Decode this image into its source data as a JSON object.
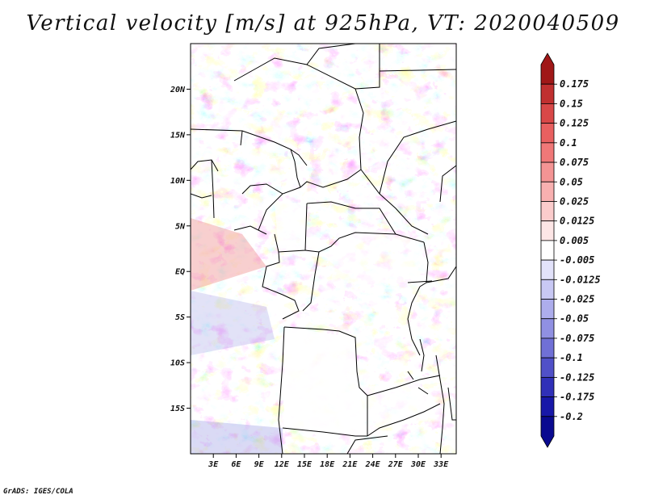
{
  "title": "Vertical velocity [m/s] at 925hPa, VT: 2020040509",
  "credit": "GrADS: IGES/COLA",
  "map": {
    "lat_labels": [
      "20N",
      "15N",
      "10N",
      "5N",
      "EQ",
      "5S",
      "10S",
      "15S"
    ],
    "lat_values": [
      20,
      15,
      10,
      5,
      0,
      -5,
      -10,
      -15
    ],
    "lon_labels": [
      "3E",
      "6E",
      "9E",
      "12E",
      "15E",
      "18E",
      "21E",
      "24E",
      "27E",
      "30E",
      "33E"
    ],
    "lon_values": [
      3,
      6,
      9,
      12,
      15,
      18,
      21,
      24,
      27,
      30,
      33
    ],
    "lon_range": [
      0,
      35
    ],
    "lat_range": [
      -20,
      25
    ]
  },
  "colorbar": {
    "levels": [
      "0.175",
      "0.15",
      "0.125",
      "0.1",
      "0.075",
      "0.05",
      "0.025",
      "0.0125",
      "0.005",
      "-0.005",
      "-0.0125",
      "-0.025",
      "-0.05",
      "-0.075",
      "-0.1",
      "-0.125",
      "-0.175",
      "-0.2"
    ],
    "colors": [
      "#a01818",
      "#c03030",
      "#d84848",
      "#e86060",
      "#f07878",
      "#f49494",
      "#f8b0b0",
      "#fbcccc",
      "#fde6e6",
      "#ffffff",
      "#e2e2fa",
      "#c8c8f4",
      "#adadec",
      "#9090e2",
      "#7070d6",
      "#5050c8",
      "#3030b8",
      "#1818a8",
      "#0a0a90"
    ]
  }
}
